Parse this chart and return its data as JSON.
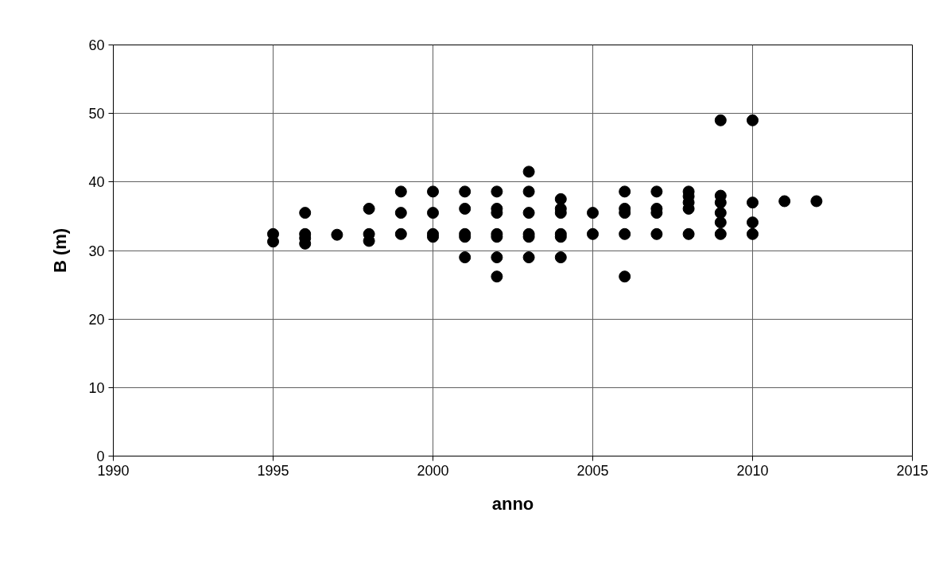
{
  "chart_data": {
    "type": "scatter",
    "xlabel": "anno",
    "ylabel": "B (m)",
    "series": [
      {
        "color": "#000000",
        "x": [
          1995,
          1995,
          1996,
          1996,
          1996,
          1996,
          1997,
          1998,
          1998,
          1998,
          1999,
          1999,
          1999,
          2000,
          2000,
          2000,
          2000,
          2001,
          2001,
          2001,
          2001,
          2001,
          2002,
          2002,
          2002,
          2002,
          2002,
          2002,
          2002,
          2003,
          2003,
          2003,
          2003,
          2003,
          2003,
          2004,
          2004,
          2004,
          2004,
          2004,
          2004,
          2005,
          2005,
          2006,
          2006,
          2006,
          2006,
          2006,
          2007,
          2007,
          2007,
          2007,
          2008,
          2008,
          2008,
          2008,
          2008,
          2009,
          2009,
          2009,
          2009,
          2009,
          2009,
          2010,
          2010,
          2010,
          2010,
          2011,
          2012
        ],
        "values": [
          32.4,
          31.3,
          35.5,
          32.4,
          31.8,
          31.0,
          32.3,
          36.1,
          32.4,
          31.4,
          38.6,
          35.5,
          32.4,
          38.6,
          35.5,
          32.4,
          32.0,
          38.6,
          36.1,
          32.4,
          32.0,
          29.0,
          38.6,
          36.1,
          35.5,
          32.4,
          32.0,
          29.0,
          26.2,
          41.5,
          38.6,
          35.5,
          32.4,
          32.0,
          29.0,
          37.5,
          36.1,
          35.5,
          32.4,
          32.0,
          29.0,
          35.5,
          32.4,
          38.6,
          36.1,
          35.5,
          32.4,
          26.2,
          38.6,
          36.1,
          35.5,
          32.4,
          38.6,
          37.9,
          37.0,
          36.1,
          32.4,
          49.0,
          38.0,
          37.0,
          35.5,
          34.1,
          32.4,
          49.0,
          37.0,
          34.1,
          32.4,
          37.2,
          37.2
        ]
      }
    ],
    "xlim": [
      1990,
      2015
    ],
    "xticks": [
      1990,
      1995,
      2000,
      2005,
      2010,
      2015
    ],
    "ylim": [
      0,
      60
    ],
    "yticks": [
      0,
      10,
      20,
      30,
      40,
      50,
      60
    ],
    "grid": true,
    "marker": "circle"
  }
}
